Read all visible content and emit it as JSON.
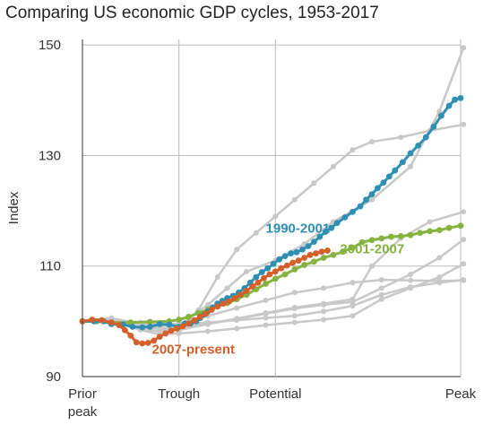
{
  "chart_data": {
    "type": "line",
    "title": "Comparing US economic GDP cycles, 1953-2017",
    "xlabel": "",
    "ylabel": "Index",
    "ylim": [
      90,
      151
    ],
    "yticks": [
      90,
      110,
      130,
      150
    ],
    "xticks": [
      {
        "pos": 0,
        "line1": "Prior",
        "line2": "peak"
      },
      {
        "pos": 1,
        "line1": "Trough",
        "line2": ""
      },
      {
        "pos": 2,
        "line1": "Potential",
        "line2": ""
      },
      {
        "pos": 3,
        "line1": "Peak",
        "line2": ""
      }
    ],
    "grid": true,
    "colors": {
      "background_series": "#c8c8c8",
      "1990-2001": "#2f8fb3",
      "2001-2007": "#86b340",
      "2007-present": "#d35f2a"
    },
    "series": [
      {
        "name": "1990-2001",
        "highlight": true,
        "points": [
          [
            0,
            100
          ],
          [
            0.12,
            100
          ],
          [
            0.22,
            100
          ],
          [
            0.3,
            99.5
          ],
          [
            0.42,
            99.4
          ],
          [
            0.52,
            99
          ],
          [
            0.62,
            98.9
          ],
          [
            0.7,
            99
          ],
          [
            0.8,
            99.5
          ],
          [
            0.9,
            99.4
          ],
          [
            1.0,
            99
          ],
          [
            1.06,
            99.6
          ],
          [
            1.12,
            99.6
          ],
          [
            1.18,
            100
          ],
          [
            1.22,
            100.6
          ],
          [
            1.26,
            101.2
          ],
          [
            1.3,
            101.8
          ],
          [
            1.35,
            102.5
          ],
          [
            1.4,
            103.2
          ],
          [
            1.45,
            103.7
          ],
          [
            1.5,
            104.2
          ],
          [
            1.56,
            104.6
          ],
          [
            1.62,
            105.2
          ],
          [
            1.68,
            106
          ],
          [
            1.74,
            107
          ],
          [
            1.8,
            108
          ],
          [
            1.86,
            108.9
          ],
          [
            1.92,
            109.6
          ],
          [
            1.98,
            110.4
          ],
          [
            2.04,
            111.2
          ],
          [
            2.1,
            111.8
          ],
          [
            2.16,
            112.3
          ],
          [
            2.22,
            112.5
          ],
          [
            2.28,
            113
          ],
          [
            2.34,
            113.6
          ],
          [
            2.4,
            114.4
          ],
          [
            2.46,
            115.3
          ],
          [
            2.52,
            116.2
          ],
          [
            2.58,
            116.9
          ],
          [
            2.64,
            117.8
          ],
          [
            2.72,
            118.8
          ],
          [
            2.8,
            119.8
          ],
          [
            2.88,
            120.8
          ],
          [
            2.94,
            122
          ],
          [
            3.0,
            123
          ],
          [
            3.06,
            124.1
          ],
          [
            3.12,
            125.1
          ],
          [
            3.18,
            126.2
          ],
          [
            3.24,
            127.3
          ],
          [
            3.32,
            128.8
          ],
          [
            3.4,
            130.4
          ],
          [
            3.48,
            131.8
          ],
          [
            3.56,
            133.3
          ],
          [
            3.64,
            135.2
          ],
          [
            3.72,
            137.2
          ],
          [
            3.8,
            139
          ],
          [
            3.86,
            140.1
          ],
          [
            3.92,
            140.4
          ]
        ]
      },
      {
        "name": "2001-2007",
        "highlight": true,
        "points": [
          [
            0,
            100
          ],
          [
            0.15,
            100
          ],
          [
            0.3,
            99.8
          ],
          [
            0.5,
            99.8
          ],
          [
            0.7,
            99.9
          ],
          [
            0.9,
            100
          ],
          [
            1.0,
            100.3
          ],
          [
            1.1,
            100.8
          ],
          [
            1.2,
            101.5
          ],
          [
            1.3,
            102.1
          ],
          [
            1.4,
            102.7
          ],
          [
            1.5,
            103.3
          ],
          [
            1.6,
            104
          ],
          [
            1.7,
            104.8
          ],
          [
            1.8,
            105.8
          ],
          [
            1.9,
            106.8
          ],
          [
            2.0,
            107.7
          ],
          [
            2.1,
            108.5
          ],
          [
            2.2,
            109.4
          ],
          [
            2.3,
            110.2
          ],
          [
            2.4,
            110.8
          ],
          [
            2.5,
            111.5
          ],
          [
            2.6,
            112
          ],
          [
            2.7,
            112.6
          ],
          [
            2.8,
            113.3
          ],
          [
            2.9,
            114.3
          ],
          [
            3.0,
            114.7
          ],
          [
            3.1,
            115
          ],
          [
            3.2,
            115.3
          ],
          [
            3.3,
            115.4
          ],
          [
            3.4,
            115.6
          ],
          [
            3.5,
            116
          ],
          [
            3.6,
            116.3
          ],
          [
            3.7,
            116.5
          ],
          [
            3.8,
            116.9
          ],
          [
            3.92,
            117.3
          ]
        ]
      },
      {
        "name": "2007-present",
        "highlight": true,
        "points": [
          [
            0,
            100
          ],
          [
            0.1,
            100.3
          ],
          [
            0.2,
            100.2
          ],
          [
            0.3,
            99.8
          ],
          [
            0.38,
            99.3
          ],
          [
            0.44,
            98.4
          ],
          [
            0.5,
            97.4
          ],
          [
            0.56,
            96.2
          ],
          [
            0.62,
            96
          ],
          [
            0.68,
            96.1
          ],
          [
            0.74,
            96.5
          ],
          [
            0.8,
            97.2
          ],
          [
            0.86,
            97.8
          ],
          [
            0.92,
            98.3
          ],
          [
            0.98,
            98.7
          ],
          [
            1.04,
            99.1
          ],
          [
            1.1,
            99.6
          ],
          [
            1.16,
            100.2
          ],
          [
            1.22,
            100.8
          ],
          [
            1.28,
            101.4
          ],
          [
            1.34,
            102.1
          ],
          [
            1.4,
            102.7
          ],
          [
            1.46,
            103.2
          ],
          [
            1.52,
            103.6
          ],
          [
            1.58,
            104.2
          ],
          [
            1.64,
            104.8
          ],
          [
            1.7,
            105.5
          ],
          [
            1.76,
            106.3
          ],
          [
            1.82,
            107
          ],
          [
            1.88,
            107.8
          ],
          [
            1.94,
            108.5
          ],
          [
            2.0,
            109
          ],
          [
            2.06,
            109.6
          ],
          [
            2.12,
            110.1
          ],
          [
            2.18,
            110.6
          ],
          [
            2.24,
            111
          ],
          [
            2.3,
            111.5
          ],
          [
            2.36,
            112
          ],
          [
            2.42,
            112.3
          ],
          [
            2.48,
            112.6
          ],
          [
            2.54,
            112.8
          ]
        ]
      },
      {
        "name": "",
        "highlight": false,
        "points": [
          [
            0,
            100
          ],
          [
            0.3,
            100.3
          ],
          [
            0.6,
            99
          ],
          [
            0.9,
            98.8
          ],
          [
            1.0,
            99
          ],
          [
            1.1,
            100.5
          ],
          [
            1.3,
            103
          ],
          [
            1.5,
            106
          ],
          [
            1.7,
            109
          ],
          [
            2.0,
            111
          ],
          [
            2.3,
            114
          ],
          [
            2.6,
            118
          ],
          [
            3.0,
            122
          ],
          [
            3.4,
            128
          ],
          [
            3.7,
            138
          ],
          [
            3.95,
            149.5
          ]
        ]
      },
      {
        "name": "",
        "highlight": false,
        "points": [
          [
            0,
            100
          ],
          [
            0.3,
            100.5
          ],
          [
            0.6,
            99.5
          ],
          [
            0.8,
            98.8
          ],
          [
            1.0,
            98.6
          ],
          [
            1.2,
            102
          ],
          [
            1.4,
            108
          ],
          [
            1.6,
            113
          ],
          [
            1.8,
            116
          ],
          [
            2.0,
            119
          ],
          [
            2.2,
            122
          ],
          [
            2.4,
            125
          ],
          [
            2.6,
            128
          ],
          [
            2.8,
            131
          ],
          [
            3.0,
            132.5
          ],
          [
            3.3,
            133.3
          ],
          [
            3.6,
            134.5
          ],
          [
            3.95,
            135.6
          ]
        ]
      },
      {
        "name": "",
        "highlight": false,
        "points": [
          [
            0,
            100
          ],
          [
            0.3,
            100.2
          ],
          [
            0.6,
            98.5
          ],
          [
            0.8,
            98.2
          ],
          [
            1.0,
            98.4
          ],
          [
            1.3,
            99.5
          ],
          [
            1.6,
            100.5
          ],
          [
            1.9,
            101.5
          ],
          [
            2.2,
            102.5
          ],
          [
            2.5,
            103.2
          ],
          [
            2.8,
            104
          ],
          [
            3.0,
            110
          ],
          [
            3.3,
            115
          ],
          [
            3.6,
            118
          ],
          [
            3.95,
            119.8
          ]
        ]
      },
      {
        "name": "",
        "highlight": false,
        "points": [
          [
            0,
            100
          ],
          [
            0.3,
            100.4
          ],
          [
            0.6,
            99
          ],
          [
            0.8,
            98.6
          ],
          [
            1.0,
            98.8
          ],
          [
            1.3,
            99.5
          ],
          [
            1.6,
            100.4
          ],
          [
            1.9,
            101.4
          ],
          [
            2.2,
            102.3
          ],
          [
            2.5,
            103
          ],
          [
            2.8,
            103.5
          ],
          [
            3.1,
            106
          ],
          [
            3.4,
            108.5
          ],
          [
            3.7,
            111.5
          ],
          [
            3.95,
            114.8
          ]
        ]
      },
      {
        "name": "",
        "highlight": false,
        "points": [
          [
            0,
            100
          ],
          [
            0.3,
            100.1
          ],
          [
            0.6,
            98.5
          ],
          [
            0.8,
            97.6
          ],
          [
            1.0,
            97.8
          ],
          [
            1.3,
            98.2
          ],
          [
            1.6,
            98.7
          ],
          [
            1.9,
            99.3
          ],
          [
            2.2,
            99.8
          ],
          [
            2.5,
            100.3
          ],
          [
            2.8,
            101
          ],
          [
            3.1,
            104
          ],
          [
            3.4,
            106
          ],
          [
            3.7,
            108
          ],
          [
            3.95,
            110.4
          ]
        ]
      },
      {
        "name": "",
        "highlight": false,
        "points": [
          [
            0,
            100
          ],
          [
            0.3,
            100.6
          ],
          [
            0.6,
            99.5
          ],
          [
            0.8,
            99.2
          ],
          [
            1.0,
            99.4
          ],
          [
            1.3,
            99.8
          ],
          [
            1.6,
            100.2
          ],
          [
            1.9,
            100.6
          ],
          [
            2.2,
            101
          ],
          [
            2.5,
            101.8
          ],
          [
            2.8,
            102.8
          ],
          [
            3.1,
            104.8
          ],
          [
            3.4,
            106.2
          ],
          [
            3.7,
            107
          ],
          [
            3.95,
            107.5
          ]
        ]
      },
      {
        "name": "",
        "highlight": false,
        "points": [
          [
            0,
            100
          ],
          [
            0.3,
            100.3
          ],
          [
            0.6,
            99.8
          ],
          [
            0.8,
            99.4
          ],
          [
            1.0,
            99.6
          ],
          [
            1.3,
            101
          ],
          [
            1.6,
            102.4
          ],
          [
            1.9,
            103.8
          ],
          [
            2.2,
            105.2
          ],
          [
            2.5,
            106
          ],
          [
            2.8,
            107
          ],
          [
            3.1,
            107.5
          ],
          [
            3.4,
            107.4
          ],
          [
            3.7,
            107.3
          ],
          [
            3.95,
            107.4
          ]
        ]
      }
    ],
    "labels": [
      {
        "series": "1990-2001",
        "text": "1990-2001",
        "x": 1.9,
        "y": 116
      },
      {
        "series": "2001-2007",
        "text": "2001-2007",
        "x": 2.67,
        "y": 112.3
      },
      {
        "series": "2007-present",
        "text": "2007-present",
        "x": 0.72,
        "y": 94.1
      }
    ]
  }
}
